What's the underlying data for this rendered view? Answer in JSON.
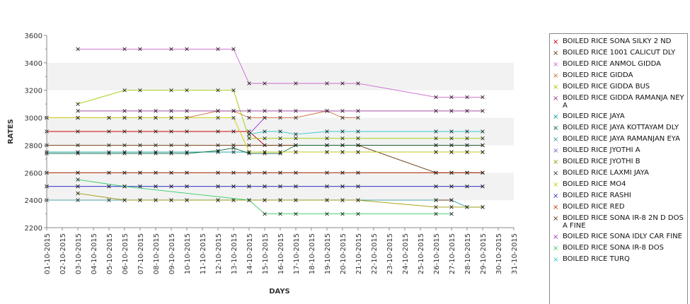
{
  "chart_data": {
    "type": "line",
    "title": "",
    "xlabel": "DAYS",
    "ylabel": "RATES",
    "ylim": [
      2200,
      3600
    ],
    "yticks": [
      "2200",
      "2400",
      "2600",
      "2800",
      "3000",
      "3200",
      "3400",
      "3600"
    ],
    "grid": "alternating horizontal bands",
    "legend_position": "right",
    "categories": [
      "01-10-2015",
      "02-10-2015",
      "03-10-2015",
      "04-10-2015",
      "05-10-2015",
      "06-10-2015",
      "07-10-2015",
      "08-10-2015",
      "09-10-2015",
      "10-10-2015",
      "11-10-2015",
      "12-10-2015",
      "13-10-2015",
      "14-10-2015",
      "15-10-2015",
      "16-10-2015",
      "17-10-2015",
      "18-10-2015",
      "19-10-2015",
      "20-10-2015",
      "21-10-2015",
      "22-10-2015",
      "23-10-2015",
      "24-10-2015",
      "25-10-2015",
      "26-10-2015",
      "27-10-2015",
      "28-10-2015",
      "29-10-2015",
      "30-10-2015",
      "31-10-2015"
    ],
    "series": [
      {
        "name": "BOILED RICE SONA SILKY 2 ND",
        "color": "#cc0000",
        "values": [
          2900,
          null,
          2900,
          null,
          2900,
          2900,
          2900,
          2900,
          2900,
          2900,
          null,
          2900,
          2900,
          2900,
          2800,
          2800,
          2800,
          null,
          2800,
          2800,
          2800,
          null,
          null,
          null,
          null,
          2800,
          2800,
          2800,
          2800,
          null,
          null
        ]
      },
      {
        "name": "BOILED RICE 1001 CALICUT DLY",
        "color": "#663300",
        "values": [
          2800,
          null,
          2800,
          null,
          2800,
          2800,
          2800,
          2800,
          2800,
          2800,
          null,
          2800,
          2800,
          2800,
          2800,
          2800,
          2800,
          null,
          2800,
          2800,
          2800,
          null,
          null,
          null,
          null,
          2600,
          2600,
          2600,
          2600,
          null,
          null
        ]
      },
      {
        "name": "BOILED RICE ANMOL GIDDA",
        "color": "#cc66cc",
        "values": [
          null,
          null,
          3500,
          null,
          null,
          3500,
          3500,
          null,
          3500,
          3500,
          null,
          3500,
          3500,
          3250,
          3250,
          null,
          3250,
          null,
          3250,
          3250,
          3250,
          null,
          null,
          null,
          null,
          3150,
          3150,
          3150,
          3150,
          null,
          null
        ]
      },
      {
        "name": "BOILED RICE GIDDA",
        "color": "#cc6633",
        "values": [
          3000,
          null,
          3000,
          null,
          3000,
          3000,
          3000,
          3000,
          3000,
          3000,
          null,
          3050,
          3050,
          3000,
          3000,
          3000,
          3000,
          null,
          3050,
          3000,
          3000,
          null,
          null,
          null,
          null,
          null,
          null,
          null,
          null,
          null,
          null
        ]
      },
      {
        "name": "BOILED RICE GIDDA BUS",
        "color": "#99cc00",
        "values": [
          null,
          null,
          3100,
          null,
          null,
          3200,
          3200,
          null,
          3200,
          3200,
          null,
          3200,
          3200,
          2850,
          2850,
          2850,
          2850,
          null,
          2850,
          2850,
          2850,
          null,
          null,
          null,
          null,
          2850,
          2850,
          2850,
          2850,
          null,
          null
        ]
      },
      {
        "name": "BOILED RICE GIDDA RAMANJA NEYA",
        "color": "#993399",
        "values": [
          null,
          null,
          3050,
          null,
          null,
          3050,
          3050,
          3050,
          3050,
          3050,
          null,
          3050,
          3050,
          3050,
          3050,
          3050,
          3050,
          null,
          3050,
          3050,
          3050,
          null,
          null,
          null,
          null,
          3050,
          3050,
          3050,
          3050,
          null,
          null
        ]
      },
      {
        "name": "BOILED RICE JAYA",
        "color": "#009999",
        "values": [
          2750,
          null,
          2750,
          null,
          2750,
          2750,
          2750,
          2750,
          2750,
          2750,
          null,
          2750,
          2750,
          2750,
          2750,
          2750,
          2750,
          null,
          2750,
          2750,
          2750,
          null,
          null,
          null,
          null,
          2750,
          2750,
          2750,
          2750,
          null,
          null
        ]
      },
      {
        "name": "BOILED RICE JAYA KOTTAYAM DLY",
        "color": "#006633",
        "values": [
          2740,
          null,
          2740,
          null,
          2740,
          2740,
          2740,
          2740,
          2740,
          2740,
          null,
          2760,
          2780,
          2740,
          2740,
          2740,
          2800,
          null,
          2800,
          2800,
          2800,
          null,
          null,
          null,
          null,
          2800,
          2800,
          2800,
          2800,
          null,
          null
        ]
      },
      {
        "name": "BOILED RICE JAYA RAMANJAN EYA",
        "color": "#339999",
        "values": [
          2400,
          null,
          2400,
          null,
          2400,
          2400,
          2400,
          2400,
          2400,
          2400,
          null,
          2400,
          2400,
          2400,
          2400,
          2400,
          2400,
          null,
          2400,
          2400,
          2400,
          null,
          null,
          null,
          null,
          2400,
          2400,
          2350,
          2350,
          null,
          null
        ]
      },
      {
        "name": "BOILED RICE JYOTHI A",
        "color": "#6666cc",
        "values": [
          2500,
          null,
          2500,
          null,
          2500,
          2500,
          2500,
          2500,
          2500,
          2500,
          null,
          2500,
          2500,
          2500,
          2500,
          2500,
          2500,
          null,
          2500,
          2500,
          2500,
          null,
          null,
          null,
          null,
          2500,
          2500,
          2500,
          2500,
          null,
          null
        ]
      },
      {
        "name": "BOILED RICE JYOTHI B",
        "color": "#999900",
        "values": [
          null,
          null,
          2450,
          null,
          null,
          2400,
          2400,
          2400,
          2400,
          2400,
          null,
          2400,
          2400,
          2400,
          2400,
          2400,
          2400,
          null,
          2400,
          2400,
          2400,
          null,
          null,
          null,
          null,
          2350,
          2350,
          2350,
          2350,
          null,
          null
        ]
      },
      {
        "name": "BOILED RICE LAXMI JAYA",
        "color": "#333333",
        "values": [
          2600,
          null,
          2600,
          null,
          2600,
          2600,
          2600,
          2600,
          2600,
          2600,
          null,
          2600,
          2600,
          2600,
          2600,
          2600,
          2600,
          null,
          2600,
          2600,
          2600,
          null,
          null,
          null,
          null,
          2600,
          2600,
          2600,
          2600,
          null,
          null
        ]
      },
      {
        "name": "BOILED RICE MO4",
        "color": "#cccc00",
        "values": [
          3000,
          null,
          3000,
          null,
          3000,
          3000,
          3000,
          3000,
          3000,
          3000,
          null,
          3000,
          3000,
          2750,
          2750,
          2750,
          2750,
          null,
          2750,
          2750,
          2750,
          null,
          null,
          null,
          null,
          2750,
          2750,
          2750,
          2750,
          null,
          null
        ]
      },
      {
        "name": "BOILED RICE RASHI",
        "color": "#3333cc",
        "values": [
          2500,
          null,
          2500,
          null,
          2500,
          2500,
          2500,
          2500,
          2500,
          2500,
          null,
          2500,
          2500,
          2500,
          2500,
          2500,
          2500,
          null,
          2500,
          2500,
          2500,
          null,
          null,
          null,
          null,
          2500,
          2500,
          2500,
          2500,
          null,
          null
        ]
      },
      {
        "name": "BOILED RICE RED",
        "color": "#cc3300",
        "values": [
          2600,
          null,
          2600,
          null,
          2600,
          2600,
          2600,
          2600,
          2600,
          2600,
          null,
          2600,
          2600,
          2600,
          2600,
          2600,
          2600,
          null,
          2600,
          2600,
          2600,
          null,
          null,
          null,
          null,
          2600,
          2600,
          2600,
          2600,
          null,
          null
        ]
      },
      {
        "name": "BOILED RICE SONA  IR-8 2N D DOSA FINE",
        "color": "#663300",
        "values": [
          null,
          null,
          null,
          null,
          null,
          null,
          null,
          null,
          null,
          null,
          null,
          null,
          null,
          null,
          null,
          null,
          null,
          null,
          null,
          null,
          null,
          null,
          null,
          null,
          null,
          2400,
          2400,
          null,
          null,
          null,
          null
        ]
      },
      {
        "name": "BOILED RICE SONA IDLY CAR FINE",
        "color": "#9933cc",
        "values": [
          null,
          null,
          null,
          null,
          null,
          null,
          null,
          null,
          null,
          null,
          null,
          null,
          null,
          2880,
          3000,
          null,
          null,
          null,
          null,
          null,
          null,
          null,
          null,
          null,
          null,
          null,
          null,
          null,
          null,
          null,
          null
        ]
      },
      {
        "name": "BOILED RICE SONA IR-8 DOS",
        "color": "#33cc66",
        "values": [
          null,
          null,
          2550,
          null,
          null,
          2500,
          null,
          null,
          null,
          null,
          null,
          null,
          null,
          2400,
          2300,
          2300,
          2300,
          null,
          2300,
          2300,
          2300,
          null,
          null,
          null,
          null,
          2300,
          2300,
          null,
          null,
          null,
          null
        ]
      },
      {
        "name": "BOILED RICE TURQ",
        "color": "#33cccc",
        "values": [
          null,
          null,
          null,
          null,
          null,
          null,
          null,
          null,
          null,
          null,
          null,
          null,
          null,
          2880,
          2900,
          2900,
          2880,
          null,
          2900,
          2900,
          2900,
          null,
          null,
          null,
          null,
          2900,
          2900,
          2900,
          2900,
          null,
          null
        ]
      }
    ]
  }
}
